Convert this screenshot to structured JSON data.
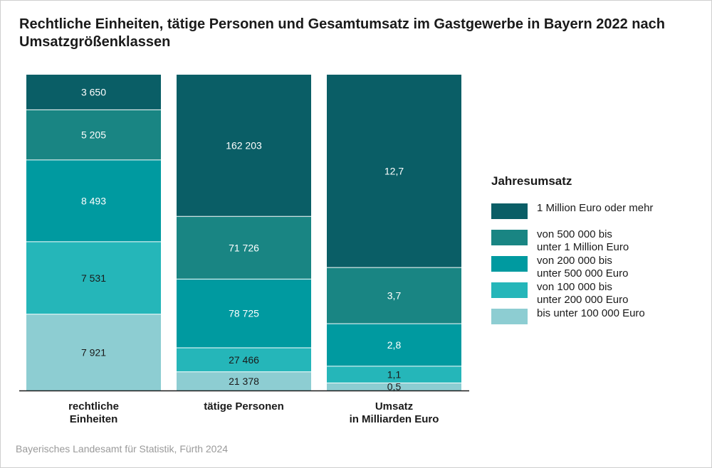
{
  "title": "Rechtliche Einheiten, tätige Personen und Gesamtumsatz im Gastgewerbe in Bayern 2022 nach Umsatzgrößenklassen",
  "source": "Bayerisches Landesamt für Statistik, Fürth 2024",
  "legend": {
    "title": "Jahresumsatz",
    "items": [
      {
        "label": "1 Million Euro oder mehr",
        "color": "#0a5e66"
      },
      {
        "label": "von 500 000 bis\nunter 1 Million Euro",
        "color": "#198583"
      },
      {
        "label": "von 200 000 bis\nunter 500 000 Euro",
        "color": "#009aa0"
      },
      {
        "label": "von 100 000 bis\nunter 200 000 Euro",
        "color": "#25b6b9"
      },
      {
        "label": "bis unter 100 000 Euro",
        "color": "#8dcdd2"
      }
    ]
  },
  "chart_data": {
    "type": "bar",
    "stacked": "100%",
    "categories": [
      "rechtliche\nEinheiten",
      "tätige Personen",
      "Umsatz\nin Milliarden Euro"
    ],
    "series": [
      {
        "name": "bis unter 100 000 Euro",
        "color": "#8dcdd2",
        "values": [
          7921,
          21378,
          0.5
        ],
        "labels": [
          "7 921",
          "21 378",
          "0,5"
        ]
      },
      {
        "name": "von 100 000 bis unter 200 000 Euro",
        "color": "#25b6b9",
        "values": [
          7531,
          27466,
          1.1
        ],
        "labels": [
          "7 531",
          "27 466",
          "1,1"
        ]
      },
      {
        "name": "von 200 000 bis unter 500 000 Euro",
        "color": "#009aa0",
        "values": [
          8493,
          78725,
          2.8
        ],
        "labels": [
          "8 493",
          "78 725",
          "2,8"
        ]
      },
      {
        "name": "von 500 000 bis unter 1 Million Euro",
        "color": "#198583",
        "values": [
          5205,
          71726,
          3.7
        ],
        "labels": [
          "5 205",
          "71 726",
          "3,7"
        ]
      },
      {
        "name": "1 Million Euro oder mehr",
        "color": "#0a5e66",
        "values": [
          3650,
          162203,
          12.7
        ],
        "labels": [
          "3 650",
          "162 203",
          "12,7"
        ]
      }
    ]
  }
}
